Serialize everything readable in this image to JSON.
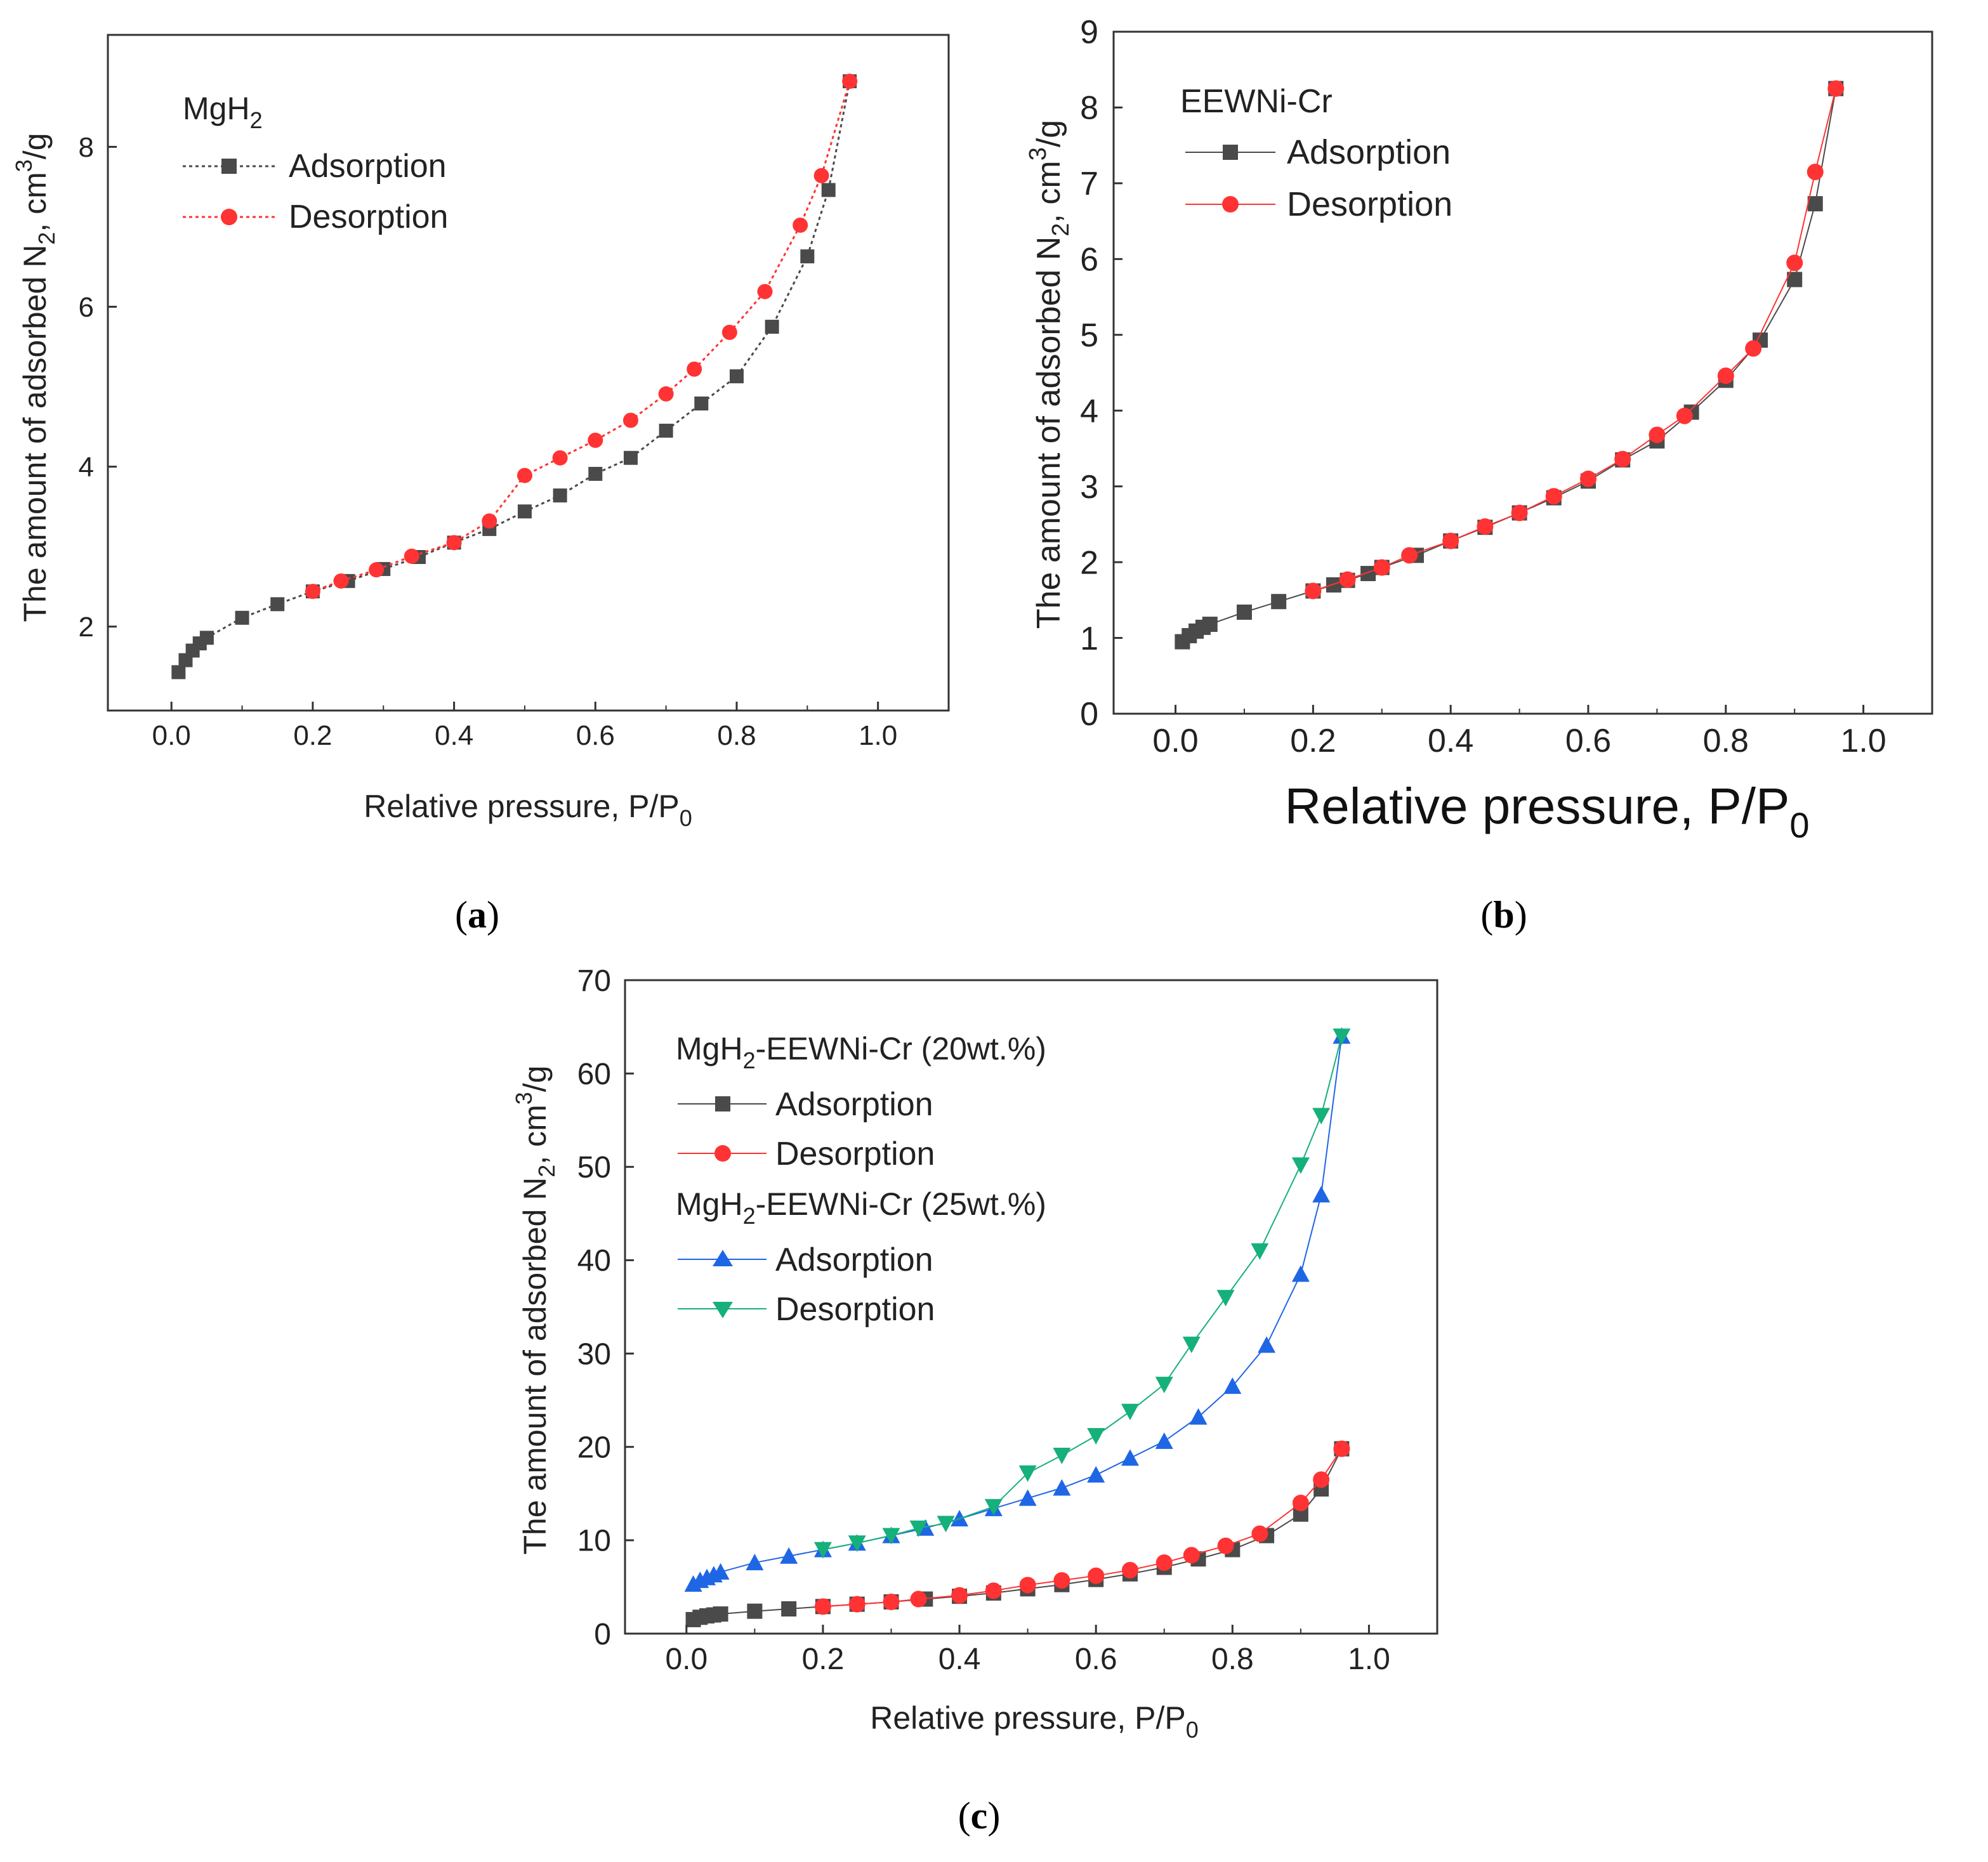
{
  "chart_data": [
    {
      "id": "a",
      "type": "line",
      "caption_letter": "a",
      "xlabel": "Relative pressure, P/P",
      "xlabel_sub": "0",
      "ylabel_pre": "The amount of adsorbed N",
      "ylabel_sub": "2",
      "ylabel_mid": ", cm",
      "ylabel_sup": "3",
      "ylabel_post": "/g",
      "xlim": [
        -0.09,
        1.1
      ],
      "ylim": [
        0.95,
        9.4
      ],
      "xticks": [
        0.0,
        0.2,
        0.4,
        0.6,
        0.8,
        1.0
      ],
      "xtick_labels": [
        "0.0",
        "0.2",
        "0.4",
        "0.6",
        "0.8",
        "1.0"
      ],
      "yticks": [
        2,
        4,
        6,
        8
      ],
      "ytick_labels": [
        "2",
        "4",
        "6",
        "8"
      ],
      "legend": {
        "title_main": "MgH",
        "title_sub": "2",
        "title_tail": "",
        "position": "top-left",
        "entries": [
          "Adsorption",
          "Desorption"
        ]
      },
      "series": [
        {
          "name": "Adsorption",
          "color": "#4a4a4a",
          "marker": "square",
          "line": "dotted",
          "x": [
            0.01,
            0.02,
            0.03,
            0.04,
            0.05,
            0.1,
            0.15,
            0.2,
            0.25,
            0.3,
            0.35,
            0.4,
            0.45,
            0.5,
            0.55,
            0.6,
            0.65,
            0.7,
            0.75,
            0.8,
            0.85,
            0.9,
            0.93,
            0.96
          ],
          "y": [
            1.43,
            1.58,
            1.7,
            1.79,
            1.86,
            2.11,
            2.28,
            2.44,
            2.57,
            2.72,
            2.87,
            3.05,
            3.22,
            3.44,
            3.64,
            3.91,
            4.11,
            4.45,
            4.79,
            5.13,
            5.75,
            6.63,
            7.46,
            8.82
          ]
        },
        {
          "name": "Desorption",
          "color": "#ff3333",
          "marker": "circle",
          "line": "dotted",
          "x": [
            0.96,
            0.92,
            0.89,
            0.84,
            0.79,
            0.74,
            0.7,
            0.65,
            0.6,
            0.55,
            0.5,
            0.45,
            0.4,
            0.34,
            0.29,
            0.24,
            0.2
          ],
          "y": [
            8.82,
            7.64,
            7.02,
            6.19,
            5.68,
            5.22,
            4.91,
            4.58,
            4.33,
            4.11,
            3.89,
            3.32,
            3.05,
            2.88,
            2.71,
            2.57,
            2.44
          ]
        }
      ]
    },
    {
      "id": "b",
      "type": "line",
      "caption_letter": "b",
      "xlabel": "Relative pressure, P/P",
      "xlabel_sub": "0",
      "ylabel_pre": "The amount of adsorbed N",
      "ylabel_sub": "2",
      "ylabel_mid": ", cm",
      "ylabel_sup": "3",
      "ylabel_post": "/g",
      "xlim": [
        -0.09,
        1.1
      ],
      "ylim": [
        0,
        9
      ],
      "xticks": [
        0.0,
        0.2,
        0.4,
        0.6,
        0.8,
        1.0
      ],
      "xtick_labels": [
        "0.0",
        "0.2",
        "0.4",
        "0.6",
        "0.8",
        "1.0"
      ],
      "yticks": [
        0,
        1,
        2,
        3,
        4,
        5,
        6,
        7,
        8,
        9
      ],
      "ytick_labels": [
        "0",
        "1",
        "2",
        "3",
        "4",
        "5",
        "6",
        "7",
        "8",
        "9"
      ],
      "legend": {
        "title_main": "EEWNi-Cr",
        "title_sub": "",
        "title_tail": "",
        "position": "top-left",
        "entries": [
          "Adsorption",
          "Desorption"
        ]
      },
      "series": [
        {
          "name": "Adsorption",
          "color": "#4a4a4a",
          "marker": "square",
          "line": "solid",
          "x": [
            0.01,
            0.02,
            0.03,
            0.04,
            0.05,
            0.1,
            0.15,
            0.2,
            0.23,
            0.25,
            0.28,
            0.3,
            0.35,
            0.4,
            0.45,
            0.5,
            0.55,
            0.6,
            0.65,
            0.7,
            0.75,
            0.8,
            0.85,
            0.9,
            0.93,
            0.96
          ],
          "y": [
            0.95,
            1.03,
            1.09,
            1.14,
            1.18,
            1.34,
            1.48,
            1.62,
            1.7,
            1.76,
            1.85,
            1.93,
            2.09,
            2.28,
            2.46,
            2.65,
            2.85,
            3.07,
            3.35,
            3.6,
            3.98,
            4.4,
            4.93,
            5.73,
            6.73,
            8.25
          ]
        },
        {
          "name": "Desorption",
          "color": "#ff3333",
          "marker": "circle",
          "line": "solid",
          "x": [
            0.96,
            0.93,
            0.9,
            0.84,
            0.8,
            0.74,
            0.7,
            0.65,
            0.6,
            0.55,
            0.5,
            0.45,
            0.4,
            0.34,
            0.3,
            0.25,
            0.2
          ],
          "y": [
            8.25,
            7.15,
            5.95,
            4.82,
            4.46,
            3.93,
            3.68,
            3.36,
            3.1,
            2.87,
            2.65,
            2.47,
            2.28,
            2.09,
            1.93,
            1.77,
            1.62
          ]
        }
      ]
    },
    {
      "id": "c",
      "type": "line",
      "caption_letter": "c",
      "xlabel": "Relative pressure, P/P",
      "xlabel_sub": "0",
      "ylabel_pre": "The amount of adsorbed N",
      "ylabel_sub": "2",
      "ylabel_mid": ", cm",
      "ylabel_sup": "3",
      "ylabel_post": "/g",
      "xlim": [
        -0.09,
        1.1
      ],
      "ylim": [
        0,
        70
      ],
      "xticks": [
        0.0,
        0.2,
        0.4,
        0.6,
        0.8,
        1.0
      ],
      "xtick_labels": [
        "0.0",
        "0.2",
        "0.4",
        "0.6",
        "0.8",
        "1.0"
      ],
      "yticks": [
        0,
        10,
        20,
        30,
        40,
        50,
        60,
        70
      ],
      "ytick_labels": [
        "0",
        "10",
        "20",
        "30",
        "40",
        "50",
        "60",
        "70"
      ],
      "legend": {
        "groups": [
          {
            "title_main": "MgH",
            "title_sub": "2",
            "title_tail": "-EEWNi-Cr (20wt.%)",
            "entries": [
              "Adsorption",
              "Desorption"
            ]
          },
          {
            "title_main": "MgH",
            "title_sub": "2",
            "title_tail": "-EEWNi-Cr (25wt.%)",
            "entries": [
              "Adsorption",
              "Desorption"
            ]
          }
        ],
        "position": "top-left"
      },
      "series": [
        {
          "name": "Adsorption",
          "group": "MgH2-EEWNi-Cr (20wt.%)",
          "color": "#4a4a4a",
          "marker": "square",
          "line": "solid",
          "x": [
            0.01,
            0.02,
            0.03,
            0.04,
            0.05,
            0.1,
            0.15,
            0.2,
            0.25,
            0.3,
            0.35,
            0.4,
            0.45,
            0.5,
            0.55,
            0.6,
            0.65,
            0.7,
            0.75,
            0.8,
            0.85,
            0.9,
            0.93,
            0.96
          ],
          "y": [
            1.5,
            1.75,
            1.9,
            2.0,
            2.1,
            2.4,
            2.65,
            2.9,
            3.15,
            3.4,
            3.7,
            4.0,
            4.35,
            4.8,
            5.25,
            5.8,
            6.4,
            7.1,
            8.0,
            9.0,
            10.5,
            12.8,
            15.5,
            19.8
          ]
        },
        {
          "name": "Desorption",
          "group": "MgH2-EEWNi-Cr (20wt.%)",
          "color": "#ff3333",
          "marker": "circle",
          "line": "solid",
          "x": [
            0.96,
            0.93,
            0.9,
            0.84,
            0.79,
            0.74,
            0.7,
            0.65,
            0.6,
            0.55,
            0.5,
            0.45,
            0.4,
            0.34,
            0.3,
            0.25,
            0.2
          ],
          "y": [
            19.8,
            16.5,
            14.0,
            10.7,
            9.4,
            8.4,
            7.6,
            6.8,
            6.2,
            5.7,
            5.2,
            4.6,
            4.1,
            3.7,
            3.4,
            3.15,
            2.9
          ]
        },
        {
          "name": "Adsorption",
          "group": "MgH2-EEWNi-Cr (25wt.%)",
          "color": "#1f66e5",
          "marker": "triangle-up",
          "line": "solid",
          "x": [
            0.01,
            0.02,
            0.03,
            0.04,
            0.05,
            0.1,
            0.15,
            0.2,
            0.25,
            0.3,
            0.35,
            0.4,
            0.45,
            0.5,
            0.55,
            0.6,
            0.65,
            0.7,
            0.75,
            0.8,
            0.85,
            0.9,
            0.93,
            0.96
          ],
          "y": [
            5.3,
            5.7,
            6.0,
            6.3,
            6.6,
            7.6,
            8.3,
            9.0,
            9.7,
            10.5,
            11.3,
            12.3,
            13.4,
            14.5,
            15.6,
            17.0,
            18.8,
            20.6,
            23.2,
            26.5,
            30.9,
            38.5,
            47.0,
            64.0
          ]
        },
        {
          "name": "Desorption",
          "group": "MgH2-EEWNi-Cr (25wt.%)",
          "color": "#16b07a",
          "marker": "triangle-down",
          "line": "solid",
          "x": [
            0.96,
            0.93,
            0.9,
            0.84,
            0.79,
            0.74,
            0.7,
            0.65,
            0.6,
            0.55,
            0.5,
            0.45,
            0.38,
            0.34,
            0.3,
            0.25,
            0.2
          ],
          "y": [
            64.0,
            55.5,
            50.2,
            41.0,
            36.0,
            31.0,
            26.7,
            23.8,
            21.2,
            19.1,
            17.2,
            13.6,
            11.8,
            11.3,
            10.5,
            9.7,
            9.0
          ]
        }
      ]
    }
  ]
}
